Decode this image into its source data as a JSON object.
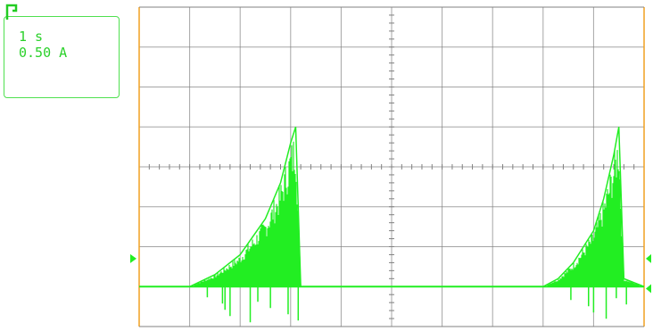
{
  "readout": {
    "timebase": "1 s",
    "amplitude": "0.50 A"
  },
  "colors": {
    "trace": "#22ee22",
    "grid": "#808080",
    "frame": "#f0a020",
    "readout_text": "#2bd12b"
  },
  "chart_data": {
    "type": "line",
    "title": "",
    "xlabel": "",
    "ylabel": "",
    "grid": true,
    "divisions": {
      "x": 10,
      "y": 8
    },
    "units": {
      "x_per_div": "1 s",
      "y_per_div": "0.50 A"
    },
    "xlim": [
      0,
      10
    ],
    "ylim": [
      -1,
      7
    ],
    "series": [
      {
        "x": [
          0,
          1,
          1.5,
          2.0,
          2.5,
          2.8,
          3.0,
          3.1,
          3.2,
          3.5,
          5,
          8,
          8.3,
          8.6,
          9.0,
          9.2,
          9.4,
          9.5,
          9.6,
          10
        ],
        "y": [
          0,
          0,
          0.3,
          0.8,
          1.7,
          2.6,
          3.6,
          4.0,
          0,
          0,
          0,
          0,
          0.2,
          0.6,
          1.4,
          2.2,
          3.3,
          4.0,
          0.2,
          0
        ]
      }
    ]
  }
}
